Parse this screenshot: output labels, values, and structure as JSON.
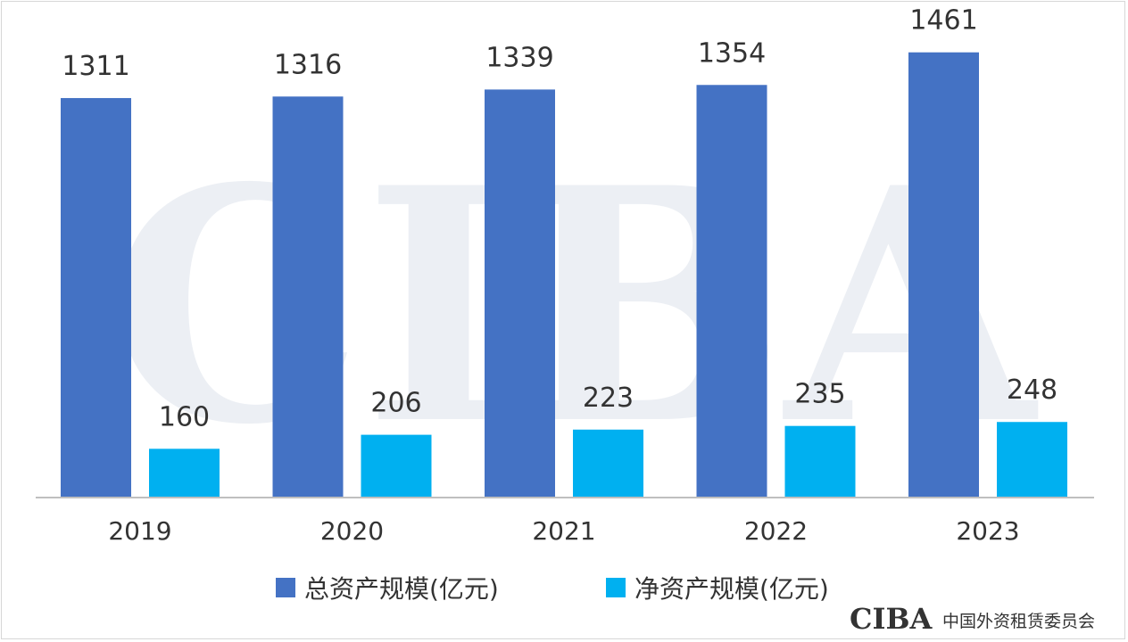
{
  "chart_data": {
    "type": "bar",
    "categories": [
      "2019",
      "2020",
      "2021",
      "2022",
      "2023"
    ],
    "series": [
      {
        "name": "总资产规模(亿元)",
        "values": [
          1311,
          1316,
          1339,
          1354,
          1461
        ],
        "color": "#4472C4"
      },
      {
        "name": "净资产规模(亿元)",
        "values": [
          160,
          206,
          223,
          235,
          248
        ],
        "color": "#00B0F0"
      }
    ],
    "ylim": [
      0,
      1545
    ],
    "grid": false,
    "legend_position": "bottom"
  },
  "watermark": {
    "text": "CIBA"
  },
  "footer_logo": {
    "mark": "CIBA",
    "org_name": "中国外资租赁委员会"
  }
}
